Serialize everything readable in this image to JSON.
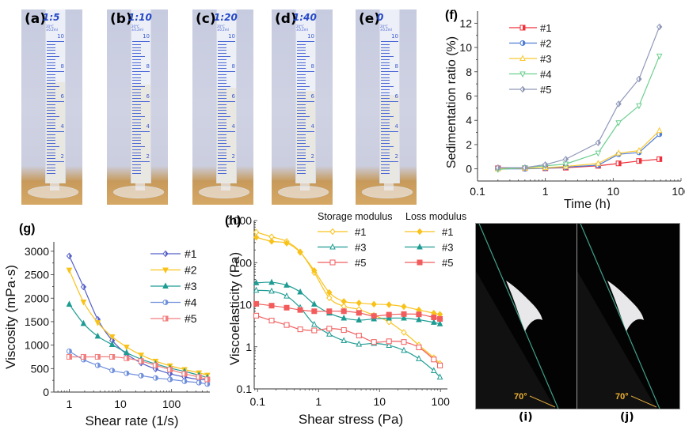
{
  "photos": [
    {
      "label": "(a)",
      "ratio": "1:5",
      "fill_level": 0.58
    },
    {
      "label": "(b)",
      "ratio": "1:10",
      "fill_level": 0.57
    },
    {
      "label": "(c)",
      "ratio": "1:20",
      "fill_level": 0.55
    },
    {
      "label": "(d)",
      "ratio": "1:40",
      "fill_level": 0.53
    },
    {
      "label": "(e)",
      "ratio": "0",
      "fill_level": 0.51
    }
  ],
  "cylinder_scale": [
    "10",
    "8",
    "6",
    "4",
    "2"
  ],
  "cylinder_brand": "20°C ±0.2ml",
  "tilt_photos": [
    {
      "label": "(i)",
      "angle": "70°"
    },
    {
      "label": "(j)",
      "angle": "70°"
    }
  ],
  "chart_data": [
    {
      "panel": "(f)",
      "type": "line",
      "xscale": "log",
      "xlabel": "Time (h)",
      "ylabel": "Sedimentation ratio (%)",
      "xlim": [
        0.1,
        100
      ],
      "ylim": [
        -1,
        13
      ],
      "xticks": [
        "0.1",
        "1",
        "10",
        "100"
      ],
      "yticks": [
        "0",
        "2",
        "4",
        "6",
        "8",
        "10",
        "12"
      ],
      "legend_position": "top-left",
      "x": [
        0.2,
        0.5,
        1,
        2,
        6,
        12,
        24,
        48
      ],
      "series": [
        {
          "name": "#1",
          "color": "#f0303a",
          "marker": "square-half",
          "values": [
            0.05,
            0.05,
            0.05,
            0.1,
            0.25,
            0.45,
            0.65,
            0.8
          ]
        },
        {
          "name": "#2",
          "color": "#4f7dd6",
          "marker": "circle-half",
          "values": [
            0.0,
            0.0,
            0.05,
            0.15,
            0.3,
            1.2,
            1.35,
            2.85
          ]
        },
        {
          "name": "#3",
          "color": "#f9c934",
          "marker": "triangle-up",
          "values": [
            0.0,
            0.05,
            0.1,
            0.2,
            0.45,
            1.3,
            1.5,
            3.15
          ]
        },
        {
          "name": "#4",
          "color": "#6ccf8f",
          "marker": "triangle-down",
          "values": [
            -0.05,
            0.1,
            0.25,
            0.4,
            1.3,
            3.8,
            5.2,
            9.3
          ]
        },
        {
          "name": "#5",
          "color": "#8f97b8",
          "marker": "diamond-half",
          "values": [
            0.1,
            0.1,
            0.35,
            0.8,
            2.15,
            5.35,
            7.4,
            11.7
          ]
        }
      ]
    },
    {
      "panel": "(g)",
      "type": "line",
      "xscale": "log",
      "xlabel": "Shear rate (1/s)",
      "ylabel": "Viscosity (mPa·s)",
      "xlim": [
        0.5,
        560
      ],
      "ylim": [
        0,
        3200
      ],
      "xticks": [
        "1",
        "10",
        "100"
      ],
      "yticks": [
        "0",
        "500",
        "1000",
        "1500",
        "2000",
        "2500",
        "3000"
      ],
      "legend_position": "top-right",
      "x": [
        1,
        1.9,
        3.6,
        6.9,
        13.2,
        25.4,
        48.7,
        93.3,
        179,
        343,
        500
      ],
      "series": [
        {
          "name": "#1",
          "color": "#5460c8",
          "marker": "diamond-half",
          "values": [
            2900,
            2240,
            1550,
            1100,
            810,
            620,
            490,
            390,
            320,
            270,
            260
          ]
        },
        {
          "name": "#2",
          "color": "#f9c21a",
          "marker": "triangle-down",
          "values": [
            2600,
            1920,
            1480,
            1180,
            960,
            790,
            660,
            560,
            480,
            410,
            360
          ]
        },
        {
          "name": "#3",
          "color": "#1e9c93",
          "marker": "triangle-up",
          "values": [
            1870,
            1460,
            1190,
            1010,
            840,
            700,
            600,
            510,
            440,
            360,
            310
          ]
        },
        {
          "name": "#4",
          "color": "#6f8fdc",
          "marker": "circle-half",
          "values": [
            870,
            690,
            570,
            460,
            400,
            350,
            300,
            270,
            230,
            200,
            170
          ]
        },
        {
          "name": "#5",
          "color": "#f27e7e",
          "marker": "square-half",
          "values": [
            750,
            750,
            750,
            750,
            720,
            660,
            570,
            480,
            390,
            320,
            270
          ]
        }
      ]
    },
    {
      "panel": "(h)",
      "type": "line",
      "xscale": "log",
      "yscale": "log",
      "xlabel": "Shear stress (Pa)",
      "ylabel": "Viscoelasticity (Pa)",
      "xlim": [
        0.088,
        130
      ],
      "ylim": [
        0.1,
        1000
      ],
      "xticks": [
        "0.1",
        "1",
        "10",
        "100"
      ],
      "yticks": [
        "0.1",
        "1",
        "10",
        "100",
        "1000"
      ],
      "legend_position": "top-right",
      "legend_headers": [
        "Storage modulus",
        "Loss modulus"
      ],
      "x": [
        0.095,
        0.17,
        0.3,
        0.5,
        0.85,
        1.5,
        2.6,
        4.6,
        8.1,
        14.3,
        25.1,
        44.2,
        77.8,
        98
      ],
      "series": [
        {
          "name": "#1",
          "group": "Storage modulus",
          "color": "#f9c21a",
          "filled": false,
          "marker": "diamond",
          "values": [
            530,
            410,
            320,
            180,
            58,
            14.5,
            9.2,
            7.7,
            5.6,
            3.9,
            2.2,
            1.1,
            0.55,
            0.4
          ]
        },
        {
          "name": "#3",
          "group": "Storage modulus",
          "color": "#1e9c93",
          "filled": false,
          "marker": "triangle-up",
          "values": [
            22,
            21,
            16,
            8.5,
            3.4,
            2.0,
            1.4,
            1.15,
            1.2,
            1.08,
            0.82,
            0.52,
            0.27,
            0.19
          ]
        },
        {
          "name": "#5",
          "group": "Storage modulus",
          "color": "#f25c5c",
          "filled": false,
          "marker": "square",
          "values": [
            5.5,
            4.2,
            3.3,
            2.6,
            2.45,
            2.7,
            2.5,
            1.85,
            1.3,
            1.35,
            1.3,
            0.97,
            0.5,
            0.36
          ]
        },
        {
          "name": "#1",
          "group": "Loss modulus",
          "color": "#f9c21a",
          "filled": true,
          "marker": "diamond",
          "values": [
            400,
            320,
            290,
            175,
            65,
            19.5,
            12,
            11,
            10.3,
            10,
            9,
            7.5,
            6.3,
            5.9
          ]
        },
        {
          "name": "#3",
          "group": "Loss modulus",
          "color": "#1e9c93",
          "filled": true,
          "marker": "triangle-up",
          "values": [
            33,
            34,
            29,
            20,
            10.3,
            6.3,
            4.8,
            4.3,
            4.6,
            4.8,
            4.8,
            4.4,
            3.8,
            3.5
          ]
        },
        {
          "name": "#5",
          "group": "Loss modulus",
          "color": "#f25c5c",
          "filled": true,
          "marker": "square",
          "values": [
            10.5,
            9.5,
            8.5,
            7.5,
            7.0,
            7.0,
            7.0,
            6.4,
            5.4,
            5.8,
            6.0,
            5.9,
            5.0,
            4.6
          ]
        }
      ]
    }
  ]
}
